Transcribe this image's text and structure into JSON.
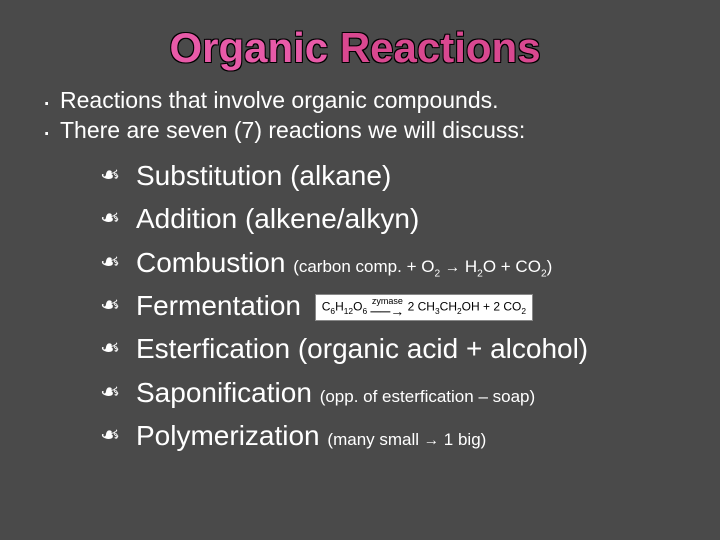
{
  "colors": {
    "background": "#4a4a4a",
    "title_word1": "#e85aa8",
    "title_word2": "#d94890",
    "text": "#ffffff",
    "equation_bg": "#ffffff",
    "equation_text": "#000000"
  },
  "title": {
    "word1": "Organic",
    "word2": "Reactions"
  },
  "intro": [
    "Reactions that involve organic compounds.",
    "There are seven (7) reactions we will discuss:"
  ],
  "reactions": [
    {
      "name": "Substitution",
      "detail": "(alkane)",
      "detail_style": "large"
    },
    {
      "name": "Addition",
      "detail": "(alkene/alkyn)",
      "detail_style": "large"
    },
    {
      "name": "Combustion",
      "detail_html": "(carbon comp. + O<span class='sub'>2</span> <span class='arrow'>→</span> H<span class='sub'>2</span>O + CO<span class='sub'>2</span>)",
      "detail_style": "small"
    },
    {
      "name": "Fermentation",
      "equation_html": "C<span class='esub'>6</span>H<span class='esub'>12</span>O<span class='esub'>6</span> <span class='zymase'>zymase<span class='arr'>──→</span></span> 2 CH<span class='esub'>3</span>CH<span class='esub'>2</span>OH + 2 CO<span class='esub'>2</span>"
    },
    {
      "name": "Esterfication",
      "detail": "(organic acid + alcohol)",
      "detail_style": "large"
    },
    {
      "name": "Saponification",
      "detail": "(opp. of esterfication – soap)",
      "detail_style": "small"
    },
    {
      "name": "Polymerization",
      "detail_html": "(many small <span class='arrow'>→</span> 1 big)",
      "detail_style": "small"
    }
  ]
}
